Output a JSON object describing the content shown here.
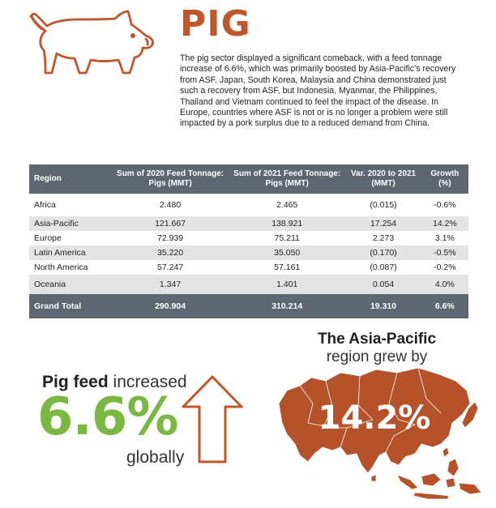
{
  "header": {
    "title": "PIG",
    "intro": "The pig sector displayed a significant comeback, with a feed tonnage increase of 6.6%, which was primarily boosted by Asia-Pacific’s recovery from ASF. Japan, South Korea, Malaysia and China demonstrated just such a recovery from ASF, but Indonesia, Myanmar, the Philippines, Thailand and Vietnam continued to feel the impact of the disease. In Europe, countries where ASF is not or is no longer a problem were still impacted by a pork surplus due to a reduced demand from China."
  },
  "table": {
    "columns": [
      "Region",
      "Sum of 2020 Feed Tonnage: Pigs (MMT)",
      "Sum of 2021 Feed Tonnage: Pigs (MMT)",
      "Var. 2020 to 2021 (MMT)",
      "Growth (%)"
    ],
    "rows": [
      [
        "Africa",
        "2.480",
        "2.465",
        "(0.015)",
        "-0.6%"
      ],
      [
        "Asia-Pacific",
        "121.667",
        "138.921",
        "17.254",
        "14.2%"
      ],
      [
        "Europe",
        "72.939",
        "75.211",
        "2.273",
        "3.1%"
      ],
      [
        "Latin America",
        "35.220",
        "35.050",
        "(0.170)",
        "-0.5%"
      ],
      [
        "North America",
        "57.247",
        "57.161",
        "(0.087)",
        "-0.2%"
      ],
      [
        "Oceania",
        "1.347",
        "1.401",
        "0.054",
        "4.0%"
      ]
    ],
    "total": [
      "Grand Total",
      "290.904",
      "310.214",
      "19.310",
      "6.6%"
    ]
  },
  "feed_stat": {
    "label_bold": "Pig feed",
    "label_rest": " increased",
    "value": "6.6%",
    "scope": "globally"
  },
  "asia_pacific": {
    "title": "The Asia-Pacific",
    "subtitle": "region grew by",
    "value": "14.2%"
  },
  "icons": {
    "pig": "pig-outline-icon",
    "arrow": "up-arrow-outline-icon",
    "map": "asia-pacific-map-icon"
  },
  "colors": {
    "brand_orange": "#c0562a",
    "green": "#7ab843",
    "table_header": "#5d6671",
    "row_stripe": "#e4e4e4",
    "map_fill": "#b5522a"
  }
}
